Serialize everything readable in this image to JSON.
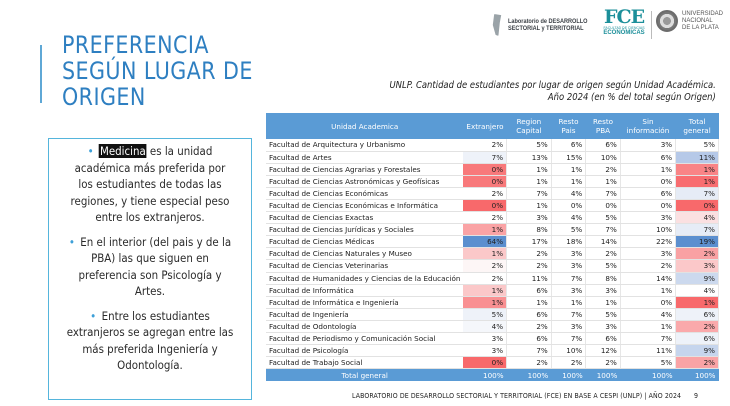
{
  "slide": {
    "title_lines": [
      "PREFERENCIA",
      "SEGÚN LUGAR DE",
      "ORIGEN"
    ],
    "page_number": "9",
    "footer": "LABORATORIO DE DESARROLLO SECTORIAL Y TERRITORIAL (FCE) EN BASE A CESPI (UNLP) | AÑO 2024"
  },
  "logos": {
    "lab_line1": "Laboratorio de DESARROLLO",
    "lab_line2": "SECTORIAL y TERRITORIAL",
    "fce_big": "FCE",
    "fce_small": "FACULTAD DE CIENCIAS",
    "fce_eco": "ECONÓMICAS",
    "unlp_line1": "UNIVERSIDAD",
    "unlp_line2": "NACIONAL",
    "unlp_line3": "DE LA PLATA"
  },
  "infobox": {
    "bullets": [
      {
        "highlight": "Medicina",
        "text": " es la unidad académica más preferida por los estudiantes de todas las regiones, y tiene especial peso entre los extranjeros."
      },
      {
        "highlight": "",
        "text": "En el interior (del pais y de la PBA) las que siguen en preferencia son Psicología y Artes."
      },
      {
        "highlight": "",
        "text": "Entre los estudiantes extranjeros se agregan entre las más preferida Ingeniería y Odontología."
      }
    ]
  },
  "table": {
    "caption_line1": "UNLP. Cantidad de estudiantes por lugar de origen según Unidad Académica.",
    "caption_line2": "Año 2024 (en % del total según Origen)",
    "headers": [
      "Unidad Academica",
      "Extranjero",
      "Region Capital",
      "Resto Pais",
      "Resto PBA",
      "Sin información",
      "Total general"
    ],
    "colors": {
      "header_bg": "#5a9bd5",
      "high": "#5b8fcf",
      "low": "#f8696b"
    },
    "rows": [
      {
        "name": "Facultad de Arquitectura y Urbanismo",
        "values": [
          "2%",
          "5%",
          "6%",
          "6%",
          "3%",
          "5%"
        ],
        "ext_bg": "#ffffff",
        "tot_bg": "#ffffff"
      },
      {
        "name": "Facultad de Artes",
        "values": [
          "7%",
          "13%",
          "15%",
          "10%",
          "6%",
          "11%"
        ],
        "ext_bg": "#eef2f9",
        "tot_bg": "#b6c9e8"
      },
      {
        "name": "Facultad de Ciencias Agrarias y Forestales",
        "values": [
          "0%",
          "1%",
          "1%",
          "2%",
          "1%",
          "1%"
        ],
        "ext_bg": "#f8797b",
        "tot_bg": "#f98486"
      },
      {
        "name": "Facultad de Ciencias Astronómicas y Geofísicas",
        "values": [
          "0%",
          "1%",
          "1%",
          "1%",
          "0%",
          "1%"
        ],
        "ext_bg": "#f8797b",
        "tot_bg": "#f86d70"
      },
      {
        "name": "Facultad de Ciencias Económicas",
        "values": [
          "2%",
          "7%",
          "4%",
          "7%",
          "6%",
          "7%"
        ],
        "ext_bg": "#ffffff",
        "tot_bg": "#e6ecf6"
      },
      {
        "name": "Facultad de Ciencias Económicas e Informática",
        "values": [
          "0%",
          "1%",
          "0%",
          "0%",
          "0%",
          "0%"
        ],
        "ext_bg": "#f8696b",
        "tot_bg": "#f8696b"
      },
      {
        "name": "Facultad de Ciencias Exactas",
        "values": [
          "2%",
          "3%",
          "4%",
          "5%",
          "3%",
          "4%"
        ],
        "ext_bg": "#ffffff",
        "tot_bg": "#fbe0e1"
      },
      {
        "name": "Facultad de Ciencias Jurídicas y Sociales",
        "values": [
          "1%",
          "8%",
          "5%",
          "7%",
          "10%",
          "7%"
        ],
        "ext_bg": "#faa3a5",
        "tot_bg": "#e6ecf6"
      },
      {
        "name": "Facultad de Ciencias Médicas",
        "values": [
          "64%",
          "17%",
          "18%",
          "14%",
          "22%",
          "19%"
        ],
        "ext_bg": "#5b8fcf",
        "tot_bg": "#5b8fcf"
      },
      {
        "name": "Facultad de Ciencias Naturales y Museo",
        "values": [
          "1%",
          "2%",
          "3%",
          "2%",
          "3%",
          "2%"
        ],
        "ext_bg": "#fbc8c9",
        "tot_bg": "#f9a1a3"
      },
      {
        "name": "Facultad de Ciencias Veterinarias",
        "values": [
          "2%",
          "2%",
          "3%",
          "5%",
          "2%",
          "3%"
        ],
        "ext_bg": "#fdf6f6",
        "tot_bg": "#fbc8c9"
      },
      {
        "name": "Facultad de Humanidades y Ciencias de la Educación",
        "values": [
          "2%",
          "11%",
          "7%",
          "8%",
          "14%",
          "9%"
        ],
        "ext_bg": "#ffffff",
        "tot_bg": "#ccd9ee"
      },
      {
        "name": "Facultad de Informática",
        "values": [
          "1%",
          "6%",
          "3%",
          "3%",
          "1%",
          "4%"
        ],
        "ext_bg": "#fbc8c9",
        "tot_bg": "#ffffff"
      },
      {
        "name": "Facultad de Informática e Ingeniería",
        "values": [
          "1%",
          "1%",
          "1%",
          "1%",
          "0%",
          "1%"
        ],
        "ext_bg": "#f99092",
        "tot_bg": "#f8696b"
      },
      {
        "name": "Facultad de Ingeniería",
        "values": [
          "5%",
          "6%",
          "7%",
          "5%",
          "4%",
          "6%"
        ],
        "ext_bg": "#eef2f9",
        "tot_bg": "#eef2f9"
      },
      {
        "name": "Facultad de Odontología",
        "values": [
          "4%",
          "2%",
          "3%",
          "3%",
          "1%",
          "2%"
        ],
        "ext_bg": "#f5f7fb",
        "tot_bg": "#faa9ab"
      },
      {
        "name": "Facultad de Periodismo y Comunicación Social",
        "values": [
          "3%",
          "6%",
          "7%",
          "6%",
          "7%",
          "6%"
        ],
        "ext_bg": "#ffffff",
        "tot_bg": "#eef2f9"
      },
      {
        "name": "Facultad de Psicología",
        "values": [
          "3%",
          "7%",
          "10%",
          "12%",
          "11%",
          "9%"
        ],
        "ext_bg": "#ffffff",
        "tot_bg": "#c6d5ed"
      },
      {
        "name": "Facultad de Trabajo Social",
        "values": [
          "0%",
          "2%",
          "2%",
          "2%",
          "5%",
          "2%"
        ],
        "ext_bg": "#f8696b",
        "tot_bg": "#faa3a5"
      }
    ],
    "total_row": {
      "name": "Total general",
      "values": [
        "100%",
        "100%",
        "100%",
        "100%",
        "100%",
        "100%"
      ]
    }
  }
}
